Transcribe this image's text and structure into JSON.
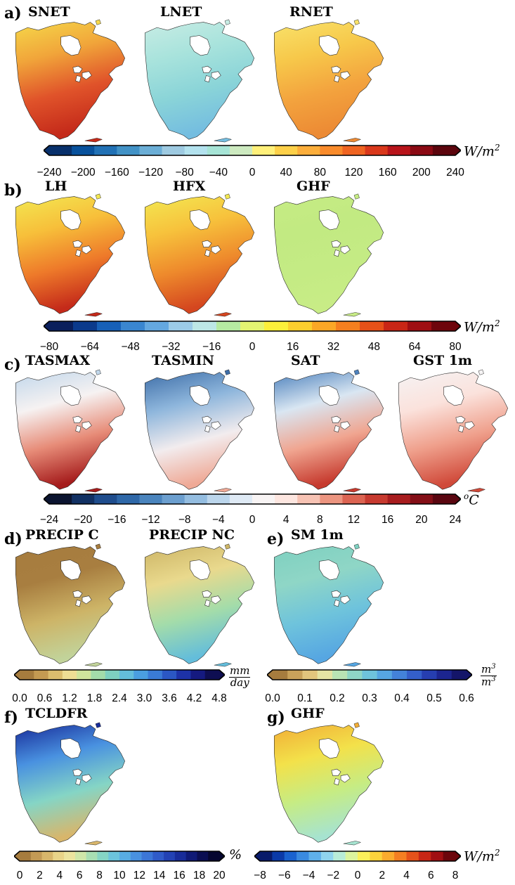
{
  "panels": {
    "a": {
      "label": "a)",
      "titles": [
        "SNET",
        "LNET",
        "RNET"
      ]
    },
    "b": {
      "label": "b)",
      "titles": [
        "LH",
        "HFX",
        "GHF"
      ]
    },
    "c": {
      "label": "c)",
      "titles": [
        "TASMAX",
        "TASMIN",
        "SAT",
        "GST 1m"
      ]
    },
    "d": {
      "label": "d)",
      "titles": [
        "PRECIP C",
        "PRECIP NC"
      ]
    },
    "e": {
      "label": "e)",
      "titles": [
        "SM 1m"
      ]
    },
    "f": {
      "label": "f)",
      "titles": [
        "TCLDFR"
      ]
    },
    "g": {
      "label": "g)",
      "titles": [
        "GHF"
      ]
    }
  },
  "colorbars": {
    "rad": {
      "ticks": [
        "−240",
        "−200",
        "−160",
        "−120",
        "−80",
        "−40",
        "0",
        "40",
        "80",
        "120",
        "160",
        "200",
        "240"
      ],
      "unit": "W/m",
      "unit_sup": "2",
      "colors": [
        "#08306b",
        "#08519c",
        "#2171b5",
        "#4292c6",
        "#6baed6",
        "#9ecae1",
        "#b3e2ee",
        "#a6e4d6",
        "#cdeac0",
        "#fff07a",
        "#fdd049",
        "#fcae3b",
        "#f98b2b",
        "#ef6421",
        "#d9381b",
        "#b8141a",
        "#8b0a14",
        "#5c050d"
      ]
    },
    "flux": {
      "ticks": [
        "−80",
        "−64",
        "−48",
        "−32",
        "−16",
        "0",
        "16",
        "32",
        "48",
        "64",
        "80"
      ],
      "unit": "W/m",
      "unit_sup": "2",
      "colors": [
        "#0a1f5c",
        "#0b3a8c",
        "#1760b8",
        "#3a86d0",
        "#64a8e0",
        "#9ccbe8",
        "#bde7e6",
        "#b6eaa2",
        "#e4f472",
        "#fcef3a",
        "#fcce2e",
        "#fba726",
        "#f57f1f",
        "#e65119",
        "#c92616",
        "#9f0e12",
        "#6e050c"
      ]
    },
    "temp": {
      "ticks": [
        "−24",
        "−20",
        "−16",
        "−12",
        "−8",
        "−4",
        "0",
        "4",
        "8",
        "12",
        "16",
        "20",
        "24"
      ],
      "unit": "C",
      "unit_sup": "o",
      "colors": [
        "#0b1430",
        "#123163",
        "#1f4d8d",
        "#2f68a8",
        "#4a84bd",
        "#6c9fcf",
        "#94bde0",
        "#bcd6ec",
        "#dfeaf5",
        "#f8f4f4",
        "#fde6e0",
        "#f7c3b4",
        "#ec9580",
        "#dc6452",
        "#c73a30",
        "#a81d1f",
        "#840f17",
        "#5a0610"
      ]
    },
    "precip": {
      "ticks": [
        "0.0",
        "0.6",
        "1.2",
        "1.8",
        "2.4",
        "3.0",
        "3.6",
        "4.2",
        "4.8"
      ],
      "unit_num": "mm",
      "unit_den": "day",
      "colors": [
        "#a67c3e",
        "#c49a52",
        "#dcbd6e",
        "#eedd94",
        "#cfe49c",
        "#a3dcaa",
        "#7ed0c0",
        "#63bddb",
        "#4a9ee0",
        "#3a7bd6",
        "#2b57c4",
        "#1d32a8",
        "#151a80",
        "#0e0e52"
      ]
    },
    "sm": {
      "ticks": [
        "0.0",
        "0.1",
        "0.2",
        "0.3",
        "0.4",
        "0.5",
        "0.6"
      ],
      "unit_num": "m",
      "unit_num_sup": "3",
      "unit_den": "m",
      "unit_den_sup": "3",
      "colors": [
        "#a67c3e",
        "#c9a25b",
        "#e2c57d",
        "#e5e3a3",
        "#b9e3b4",
        "#8fd6c6",
        "#6ec3dc",
        "#56a6e2",
        "#4382da",
        "#345fca",
        "#263eb0",
        "#1c2590",
        "#141569"
      ]
    },
    "cld": {
      "ticks": [
        "0",
        "2",
        "4",
        "6",
        "8",
        "10",
        "12",
        "14",
        "16",
        "18",
        "20"
      ],
      "unit": "%",
      "colors": [
        "#a67c3e",
        "#c39a55",
        "#d8b66b",
        "#e9d489",
        "#ece49f",
        "#cfe7a9",
        "#a8dfb3",
        "#85d5c5",
        "#6cc4dc",
        "#58ace3",
        "#4991e0",
        "#3c76d6",
        "#305bc8",
        "#2342b4",
        "#182c99",
        "#0f1a76",
        "#0a0e52",
        "#050630"
      ]
    },
    "ghf": {
      "ticks": [
        "−8",
        "−6",
        "−4",
        "−2",
        "0",
        "2",
        "4",
        "6",
        "8"
      ],
      "unit": "W/m",
      "unit_sup": "2",
      "colors": [
        "#081a6a",
        "#0b3aa8",
        "#1a62cf",
        "#3a8ae0",
        "#5fb0ea",
        "#90d4ee",
        "#b8ecd8",
        "#dcf49e",
        "#fbf05a",
        "#fcd23c",
        "#fbab2e",
        "#f47f22",
        "#e5521a",
        "#c82715",
        "#a00f12",
        "#6c060c"
      ]
    }
  },
  "maps": {
    "SNET": {
      "colors": [
        "#f5d84a",
        "#f1a53a",
        "#e0532a",
        "#c42a1a"
      ]
    },
    "LNET": {
      "colors": [
        "#c7ece4",
        "#a8e3dc",
        "#8ad4d8",
        "#74bde0"
      ]
    },
    "RNET": {
      "colors": [
        "#f8e26a",
        "#f7c84a",
        "#f3a33e",
        "#ec8a34"
      ]
    },
    "LH": {
      "colors": [
        "#f3e852",
        "#f7bf3a",
        "#ee7a2a",
        "#c42a1a"
      ]
    },
    "HFX": {
      "colors": [
        "#f3e852",
        "#f7c23c",
        "#ee8a2c",
        "#d4461f"
      ]
    },
    "GHF_b": {
      "colors": [
        "#c6ec84",
        "#c2ea82",
        "#c4eb84",
        "#c8ec86"
      ]
    },
    "TASMAX": {
      "colors": [
        "#c1d7eb",
        "#f6f2f2",
        "#e78c78",
        "#a51c1c"
      ]
    },
    "TASMIN": {
      "colors": [
        "#3e6ea8",
        "#8eb6dc",
        "#f2ecee",
        "#efa996"
      ]
    },
    "SAT": {
      "colors": [
        "#4e82bd",
        "#d9e6f2",
        "#f0a590",
        "#c63a2e"
      ]
    },
    "GST 1m": {
      "colors": [
        "#f5f3f4",
        "#fbe2dc",
        "#ef9f8b",
        "#d04a3a"
      ]
    },
    "PRECIP C": {
      "colors": [
        "#a67c3e",
        "#a87e40",
        "#cdb467",
        "#c2d39a"
      ]
    },
    "PRECIP NC": {
      "colors": [
        "#cdb566",
        "#e9d98d",
        "#a3dcaa",
        "#63bddb"
      ]
    },
    "SM 1m": {
      "colors": [
        "#7ed0c0",
        "#8fd6c6",
        "#6ec3dc",
        "#56a6e2"
      ]
    },
    "TCLDFR": {
      "colors": [
        "#182c99",
        "#4991e0",
        "#85d5c5",
        "#d8b66b"
      ]
    },
    "GHF_g": {
      "colors": [
        "#f1ad36",
        "#f3e14a",
        "#c6ec84",
        "#a6e3d0"
      ]
    }
  }
}
